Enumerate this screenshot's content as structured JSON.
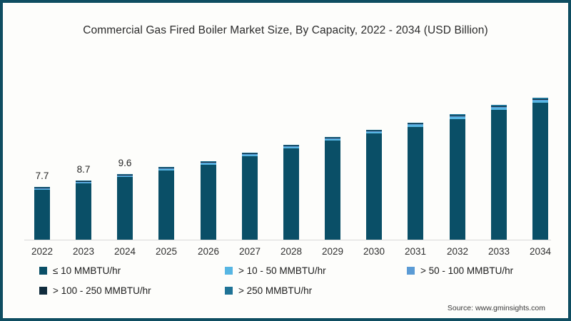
{
  "title": "Commercial Gas Fired Boiler Market Size, By Capacity, 2022 - 2034 (USD Billion)",
  "source": "Source: www.gminsights.com",
  "frame": {
    "border_color": "#0e4d61",
    "background": "#fdfdfb"
  },
  "chart_data": {
    "type": "bar",
    "stacked": true,
    "title": "Commercial Gas Fired Boiler Market Size, By Capacity, 2022 - 2034 (USD Billion)",
    "unit": "USD Billion",
    "xlabel": "",
    "ylabel": "",
    "ylim": [
      0,
      22
    ],
    "grid": false,
    "legend_position": "bottom",
    "categories": [
      "2022",
      "2023",
      "2024",
      "2025",
      "2026",
      "2027",
      "2028",
      "2029",
      "2030",
      "2031",
      "2032",
      "2033",
      "2034"
    ],
    "totals": [
      7.7,
      8.7,
      9.6,
      10.6,
      11.5,
      12.7,
      13.9,
      15.0,
      16.1,
      17.1,
      18.4,
      19.7,
      20.8
    ],
    "value_labels": [
      "7.7",
      "8.7",
      "9.6",
      "",
      "",
      "",
      "",
      "",
      "",
      "",
      "",
      "",
      ""
    ],
    "labeled_values_note": "Only 2022-2024 carry data labels; later totals estimated from bar heights",
    "series": [
      {
        "name": "≤ 10 MMBTU/hr",
        "color": "#0a4f67",
        "share_estimate": 0.965
      },
      {
        "name": "> 10 - 50 MMBTU/hr",
        "color": "#57b6e3",
        "share_estimate": 0.016
      },
      {
        "name": "> 50 - 100 MMBTU/hr",
        "color": "#5b9bd5",
        "share_estimate": 0.005
      },
      {
        "name": "> 100 - 250 MMBTU/hr",
        "color": "#102c3d",
        "share_estimate": 0.005
      },
      {
        "name": "> 250 MMBTU/hr",
        "color": "#1f7396",
        "share_estimate": 0.009
      }
    ],
    "colors": {
      "axis_line": "#d8d8d8",
      "label_text": "#262626",
      "tick_text": "#2f2f2f"
    }
  }
}
